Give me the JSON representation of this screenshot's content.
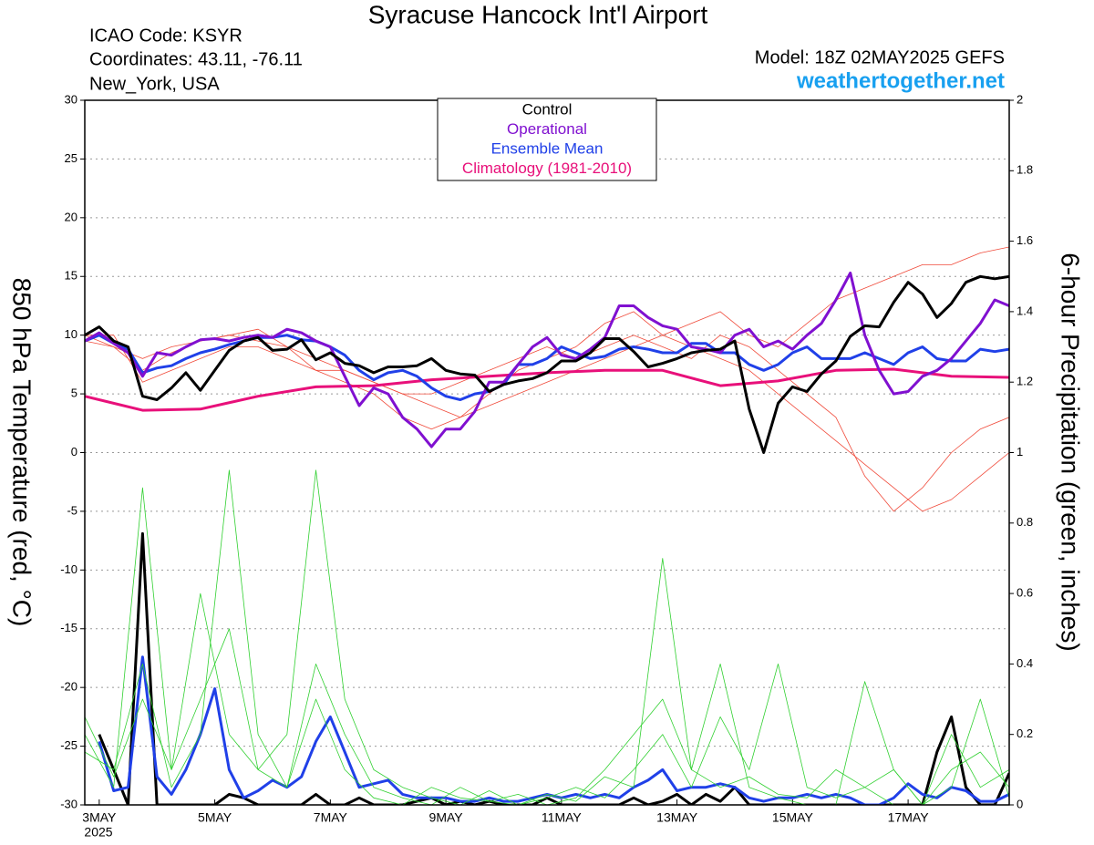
{
  "chart_data": {
    "type": "line",
    "title": "Syracuse Hancock Int'l Airport",
    "station": "ICAO Code: KSYR",
    "coordinates": "Coordinates: 43.11, -76.11",
    "location": "New_York, USA",
    "model": "Model: 18Z 02MAY2025 GEFS",
    "source": "weathertogether.net",
    "y_label": "850 hPa Temperature (red, °C)",
    "y2_label": "6-hour Precipitation (green, inches)",
    "legend_title": "Control",
    "x_year": "2025",
    "x": [
      0,
      6,
      12,
      18,
      24,
      30,
      36,
      42,
      48,
      54,
      60,
      66,
      72,
      78,
      84,
      90,
      96,
      102,
      108,
      114,
      120,
      126,
      132,
      138,
      144,
      150,
      156,
      162,
      168,
      174,
      180,
      186,
      192,
      198,
      204,
      210,
      216,
      222,
      228,
      234,
      240,
      246,
      252,
      258,
      264,
      270,
      276,
      282,
      288,
      294,
      300,
      306,
      312,
      318,
      324,
      330,
      336,
      342,
      348,
      354,
      360,
      366,
      372,
      378,
      384
    ],
    "xlim": [
      0,
      384
    ],
    "xticks": [
      {
        "value": 6,
        "label": "3MAY"
      },
      {
        "value": 54,
        "label": "5MAY"
      },
      {
        "value": 102,
        "label": "7MAY"
      },
      {
        "value": 150,
        "label": "9MAY"
      },
      {
        "value": 198,
        "label": "11MAY"
      },
      {
        "value": 246,
        "label": "13MAY"
      },
      {
        "value": 294,
        "label": "15MAY"
      },
      {
        "value": 342,
        "label": "17MAY"
      }
    ],
    "ylim": [
      -30,
      30
    ],
    "yticks": [
      -30,
      -25,
      -20,
      -15,
      -10,
      -5,
      0,
      5,
      10,
      15,
      20,
      25,
      30
    ],
    "y2lim": [
      0,
      2
    ],
    "y2ticks": [
      0,
      0.2,
      0.4,
      0.6,
      0.8,
      1,
      1.2,
      1.4,
      1.6,
      1.8,
      2
    ],
    "grid": true,
    "legend": "top",
    "series": [
      {
        "name": "Control",
        "color": "#000000",
        "line_width": 3,
        "axis": "y",
        "values": [
          10.0,
          10.7,
          9.5,
          9.0,
          4.8,
          4.5,
          5.5,
          6.8,
          5.3,
          7.0,
          8.7,
          9.5,
          9.8,
          8.7,
          8.8,
          9.6,
          7.9,
          8.5,
          7.6,
          7.4,
          6.8,
          7.3,
          7.3,
          7.4,
          8.0,
          7.0,
          6.7,
          6.6,
          5.2,
          5.8,
          6.1,
          6.3,
          6.8,
          7.8,
          7.8,
          8.5,
          9.7,
          9.7,
          8.6,
          7.3,
          7.6,
          8.0,
          8.5,
          8.7,
          8.8,
          9.5,
          3.7,
          0.0,
          4.2,
          5.6,
          5.2,
          6.7,
          7.8,
          9.9,
          10.8,
          10.7,
          12.8,
          14.5,
          13.5,
          11.5,
          12.7,
          14.5,
          15.0,
          14.8,
          15.0
        ]
      },
      {
        "name": "Operational",
        "color": "#8010d0",
        "line_width": 3,
        "axis": "y",
        "values": [
          9.5,
          10.2,
          9.3,
          8.5,
          6.5,
          8.5,
          8.3,
          9.0,
          9.6,
          9.7,
          9.5,
          9.8,
          10.0,
          9.8,
          10.5,
          10.2,
          9.5,
          9.0,
          6.5,
          4.0,
          5.5,
          5.0,
          3.0,
          2.0,
          0.5,
          2.0,
          2.0,
          3.5,
          6.0,
          6.0,
          7.5,
          9.0,
          9.8,
          8.3,
          8.0,
          8.8,
          9.8,
          12.5,
          12.5,
          11.5,
          10.8,
          10.5,
          9.0,
          8.8,
          8.5,
          10.0,
          10.5,
          9.0,
          9.5,
          8.8,
          10.0,
          11.0,
          13.0,
          15.3,
          10.0,
          7.0,
          5.0,
          5.2,
          6.5,
          7.0,
          8.0,
          9.5,
          11.0,
          13.0,
          12.5
        ]
      },
      {
        "name": "Ensemble Mean",
        "color": "#2040e8",
        "line_width": 3,
        "axis": "y",
        "values": [
          9.5,
          10.0,
          9.3,
          8.8,
          6.8,
          7.2,
          7.4,
          8.0,
          8.5,
          8.8,
          9.2,
          9.5,
          9.8,
          9.8,
          10.0,
          9.6,
          9.5,
          9.0,
          8.3,
          7.0,
          6.2,
          6.8,
          7.0,
          6.5,
          5.5,
          4.8,
          4.5,
          5.0,
          5.2,
          5.8,
          7.5,
          7.5,
          8.0,
          9.0,
          8.5,
          8.0,
          8.2,
          8.8,
          9.0,
          8.8,
          8.5,
          8.5,
          9.3,
          9.3,
          8.5,
          8.5,
          7.5,
          7.0,
          7.5,
          8.5,
          9.0,
          8.0,
          8.0,
          8.0,
          8.5,
          8.0,
          7.5,
          8.5,
          9.0,
          8.0,
          7.8,
          7.8,
          8.8,
          8.6,
          8.8
        ]
      },
      {
        "name": "Climatology (1981-2010)",
        "color": "#e8107a",
        "line_width": 3,
        "axis": "y",
        "x": [
          0,
          24,
          48,
          72,
          96,
          120,
          144,
          168,
          192,
          216,
          240,
          264,
          288,
          312,
          336,
          360,
          384
        ],
        "values": [
          4.8,
          3.6,
          3.7,
          4.8,
          5.6,
          5.7,
          6.2,
          6.5,
          6.8,
          7.0,
          7.0,
          5.7,
          6.1,
          7.0,
          7.1,
          6.5,
          6.4
        ]
      },
      {
        "color": "#000000",
        "line_width": 3,
        "axis": "y2",
        "values": [
          null,
          0.2,
          0.1,
          0,
          0.77,
          0,
          0,
          0,
          0,
          0,
          0.03,
          0.02,
          0,
          0,
          0,
          0,
          0.03,
          0,
          0,
          0.02,
          0,
          0,
          0,
          0.01,
          0.02,
          0,
          0.01,
          0,
          0.01,
          0,
          0,
          0,
          0.02,
          0,
          0,
          0,
          0,
          0,
          0.02,
          0,
          0.01,
          0.03,
          0,
          0.03,
          0.01,
          0.05,
          0,
          0,
          0,
          0,
          0,
          0,
          0,
          0,
          0,
          0,
          0,
          0,
          0,
          0.15,
          0.25,
          0.05,
          0,
          0,
          0.09
        ]
      },
      {
        "color": "#2040e8",
        "line_width": 3,
        "axis": "y2",
        "values": [
          null,
          0.18,
          0.04,
          0.05,
          0.42,
          0.08,
          0.03,
          0.1,
          0.2,
          0.33,
          0.1,
          0.02,
          0.04,
          0.07,
          0.05,
          0.08,
          0.18,
          0.25,
          0.15,
          0.05,
          0.06,
          0.07,
          0.03,
          0.02,
          0.02,
          0.02,
          0.01,
          0.01,
          0.02,
          0.01,
          0.01,
          0.02,
          0.03,
          0.02,
          0.03,
          0.02,
          0.03,
          0.02,
          0.05,
          0.07,
          0.1,
          0.04,
          0.05,
          0.05,
          0.06,
          0.05,
          0.02,
          0.01,
          0.02,
          0.02,
          0.03,
          0.02,
          0.03,
          0.02,
          0,
          0,
          0.02,
          0.06,
          0.03,
          0.02,
          0.05,
          0.04,
          0.01,
          0.01,
          0.03
        ]
      },
      {
        "color": "#f04a3a",
        "line_width": 0.8,
        "axis": "y",
        "x": [
          0,
          12,
          24,
          36,
          48,
          60,
          72,
          84,
          96,
          108,
          120,
          132,
          144,
          156,
          168,
          180,
          192,
          204,
          216,
          228,
          240,
          252,
          264,
          276,
          288,
          300,
          312,
          324,
          336,
          348,
          360,
          372,
          384
        ],
        "values": [
          10,
          9,
          7,
          8.5,
          9.5,
          10,
          9.5,
          9,
          8,
          7,
          6,
          5,
          4,
          3,
          4,
          5,
          6,
          7,
          8,
          9,
          10,
          9,
          8,
          7,
          5,
          3,
          1,
          -1,
          -3,
          -5,
          -4,
          -2,
          0
        ]
      },
      {
        "color": "#f04a3a",
        "line_width": 0.8,
        "axis": "y",
        "x": [
          0,
          12,
          24,
          36,
          48,
          60,
          72,
          84,
          96,
          108,
          120,
          132,
          144,
          156,
          168,
          180,
          192,
          204,
          216,
          228,
          240,
          252,
          264,
          276,
          288,
          300,
          312,
          324,
          336,
          348,
          360,
          372,
          384
        ],
        "values": [
          9.5,
          9,
          8,
          9,
          9.5,
          10,
          10.5,
          9,
          7,
          6,
          5,
          3,
          2,
          3,
          5,
          7,
          8,
          9,
          11,
          12,
          10,
          11,
          12,
          10,
          9,
          11,
          13,
          14,
          15,
          16,
          16,
          17,
          17.5
        ]
      },
      {
        "color": "#f04a3a",
        "line_width": 0.8,
        "axis": "y",
        "x": [
          0,
          12,
          24,
          36,
          48,
          60,
          72,
          84,
          96,
          108,
          120,
          132,
          144,
          156,
          168,
          180,
          192,
          204,
          216,
          228,
          240,
          252,
          264,
          276,
          288,
          300,
          312,
          324,
          336,
          348,
          360,
          372,
          384
        ],
        "values": [
          10,
          10,
          6,
          7,
          8,
          9,
          9,
          8,
          7,
          7,
          6,
          5,
          5,
          6,
          7,
          8,
          9,
          8,
          9,
          10,
          9,
          8,
          10,
          9,
          7,
          5,
          3,
          -2,
          -5,
          -3,
          0,
          2,
          3
        ]
      },
      {
        "color": "#30d030",
        "line_width": 0.8,
        "axis": "y2",
        "x": [
          0,
          12,
          24,
          36,
          48,
          60,
          72,
          84,
          96,
          108,
          120,
          132,
          144,
          156,
          168,
          180,
          192,
          204,
          216,
          228,
          240,
          252,
          264,
          276,
          288,
          300,
          312,
          324,
          336,
          348,
          360,
          372,
          384
        ],
        "values": [
          0.2,
          0.05,
          0.9,
          0.1,
          0.3,
          0.5,
          0.1,
          0.05,
          0.3,
          0.1,
          0.02,
          0,
          0.05,
          0.02,
          0.01,
          0,
          0.03,
          0.01,
          0.08,
          0.05,
          0.7,
          0.1,
          0.05,
          0.08,
          0.03,
          0.02,
          0.1,
          0.05,
          0,
          0,
          0.2,
          0.05,
          0.1
        ]
      },
      {
        "color": "#30d030",
        "line_width": 0.8,
        "axis": "y2",
        "x": [
          0,
          12,
          24,
          36,
          48,
          60,
          72,
          84,
          96,
          108,
          120,
          132,
          144,
          156,
          168,
          180,
          192,
          204,
          216,
          228,
          240,
          252,
          264,
          276,
          288,
          300,
          312,
          324,
          336,
          348,
          360,
          372,
          384
        ],
        "values": [
          0.15,
          0.1,
          0.4,
          0.05,
          0.2,
          0.95,
          0.2,
          0.05,
          0.4,
          0.2,
          0.05,
          0.02,
          0,
          0.05,
          0.01,
          0.03,
          0,
          0.02,
          0.1,
          0.2,
          0.3,
          0.1,
          0.4,
          0.05,
          0.02,
          0,
          0,
          0.35,
          0.1,
          0,
          0.05,
          0.3,
          0.02
        ]
      },
      {
        "color": "#30d030",
        "line_width": 0.8,
        "axis": "y2",
        "x": [
          0,
          12,
          24,
          36,
          48,
          60,
          72,
          84,
          96,
          108,
          120,
          132,
          144,
          156,
          168,
          180,
          192,
          204,
          216,
          228,
          240,
          252,
          264,
          276,
          288,
          300,
          312,
          324,
          336,
          348,
          360,
          372,
          384
        ],
        "values": [
          0.25,
          0.08,
          0.3,
          0.1,
          0.6,
          0.2,
          0.1,
          0.2,
          0.95,
          0.3,
          0.1,
          0.05,
          0.02,
          0,
          0.04,
          0,
          0.02,
          0.05,
          0.02,
          0.1,
          0.2,
          0.05,
          0.25,
          0.1,
          0.4,
          0.05,
          0.02,
          0.05,
          0.1,
          0,
          0.1,
          0.15,
          0.05
        ]
      }
    ]
  }
}
